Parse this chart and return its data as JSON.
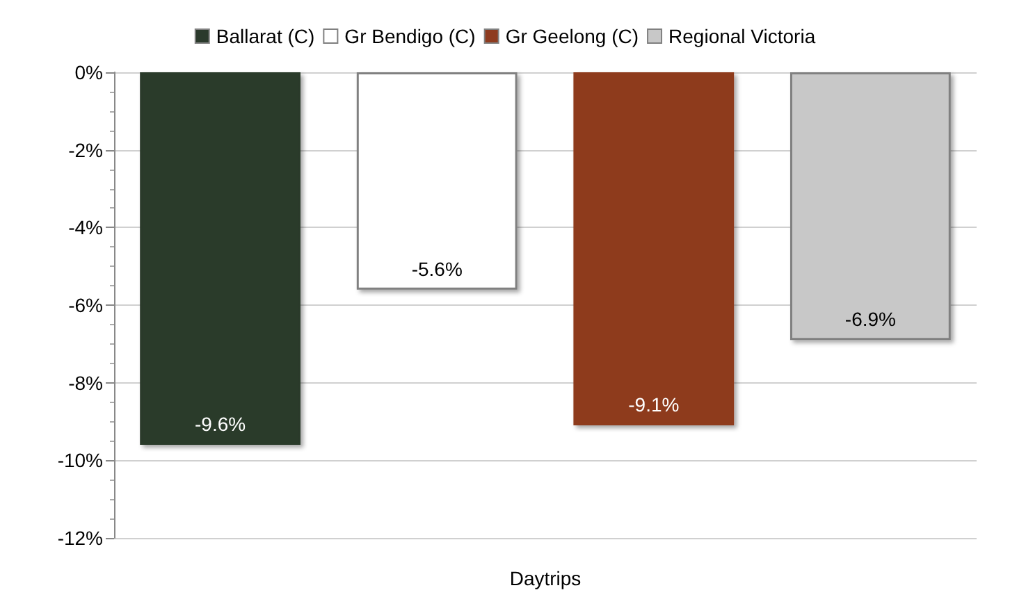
{
  "chart_data": {
    "type": "bar",
    "categories": [
      "Daytrips"
    ],
    "series": [
      {
        "name": "Ballarat (C)",
        "color": "#2b3a2c",
        "values": [
          -9.6
        ],
        "value_labels": [
          "-9.6%"
        ]
      },
      {
        "name": "Gr Bendigo (C)",
        "color": "#ffffff",
        "values": [
          -5.6
        ],
        "value_labels": [
          "-5.6%"
        ]
      },
      {
        "name": "Gr Geelong (C)",
        "color": "#8e3b1f",
        "values": [
          -9.1
        ],
        "value_labels": [
          "-9.1%"
        ]
      },
      {
        "name": "Regional Victoria",
        "color": "#c8c8c8",
        "values": [
          -6.9
        ],
        "value_labels": [
          "-6.9%"
        ]
      }
    ],
    "ylim": [
      -12,
      0
    ],
    "yticks": [
      {
        "value": -12,
        "label": "-12%"
      },
      {
        "value": -10,
        "label": "-10%"
      },
      {
        "value": -8,
        "label": "-8%"
      },
      {
        "value": -6,
        "label": "-6%"
      },
      {
        "value": -4,
        "label": "-4%"
      },
      {
        "value": -2,
        "label": "-2%"
      },
      {
        "value": 0,
        "label": "0%"
      }
    ],
    "grid": "y",
    "legend": "top"
  }
}
